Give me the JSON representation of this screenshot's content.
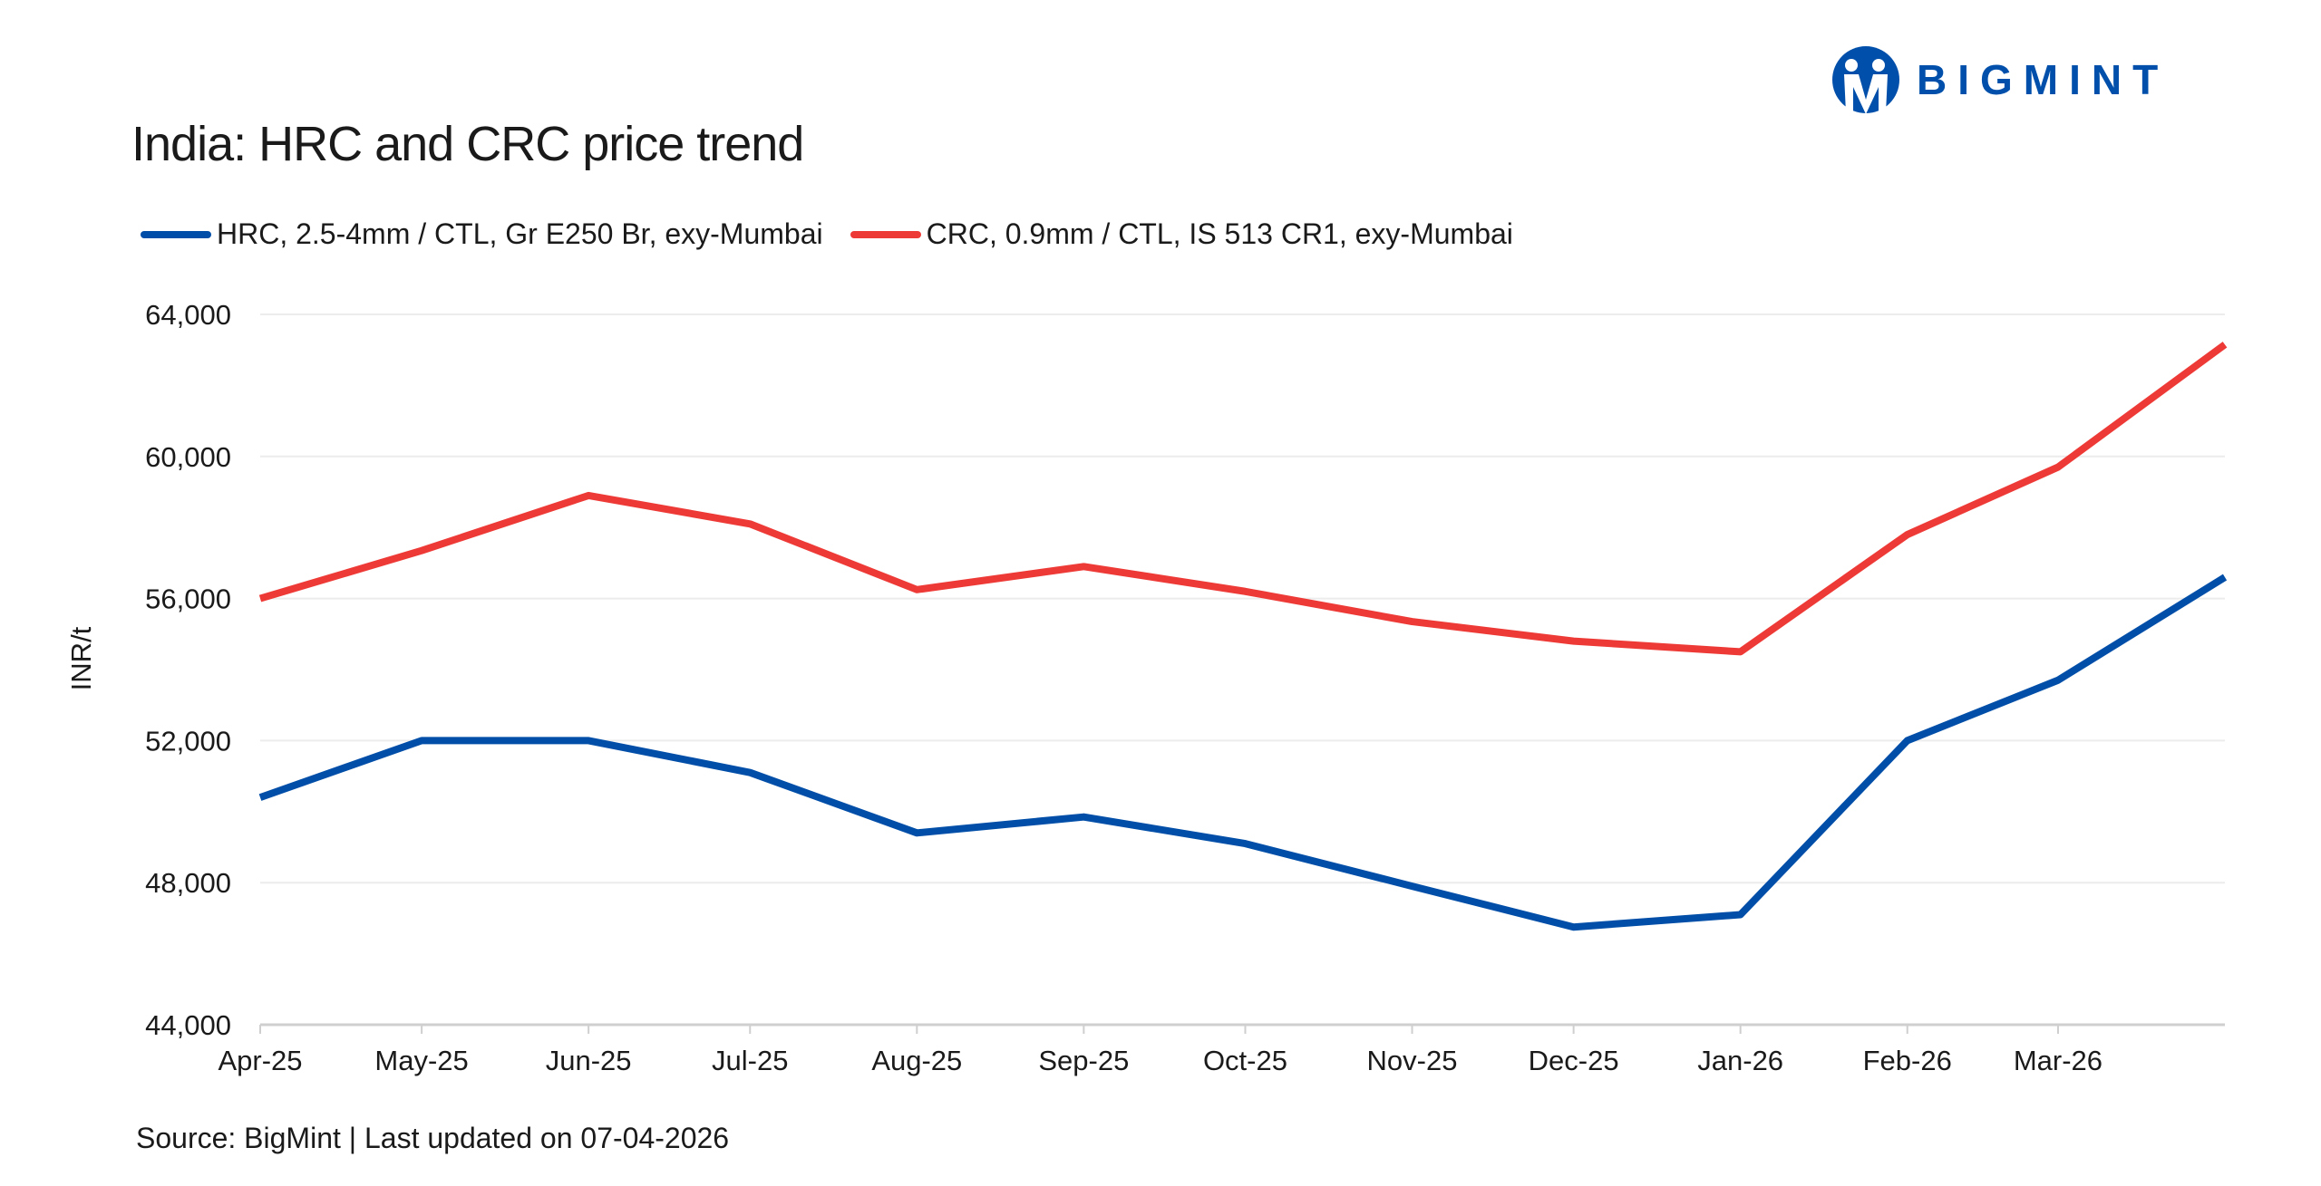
{
  "brand": {
    "name": "BIGMINT",
    "color": "#004FAA"
  },
  "chart_data": {
    "type": "line",
    "title": "India: HRC and CRC price trend",
    "ylabel": "INR/t",
    "xlabel": "",
    "ylim": [
      44000,
      64000
    ],
    "yticks": [
      44000,
      48000,
      52000,
      56000,
      60000,
      64000
    ],
    "ytick_labels": [
      "44,000",
      "48,000",
      "52,000",
      "56,000",
      "60,000",
      "64,000"
    ],
    "xticks": [
      "2025-04-01",
      "2025-05-01",
      "2025-06-01",
      "2025-07-01",
      "2025-08-01",
      "2025-09-01",
      "2025-10-01",
      "2025-11-01",
      "2025-12-01",
      "2026-01-01",
      "2026-02-01",
      "2026-03-01"
    ],
    "xtick_labels": [
      "Apr-25",
      "May-25",
      "Jun-25",
      "Jul-25",
      "Aug-25",
      "Sep-25",
      "Oct-25",
      "Nov-25",
      "Dec-25",
      "Jan-26",
      "Feb-26",
      "Mar-26"
    ],
    "xlim": [
      "2025-04-01",
      "2026-04-01"
    ],
    "grid": "horizontal",
    "legend_position": "top-left",
    "x": [
      "2025-04-01",
      "2025-05-01",
      "2025-06-01",
      "2025-07-01",
      "2025-08-01",
      "2025-09-01",
      "2025-10-01",
      "2025-11-01",
      "2025-12-01",
      "2026-01-01",
      "2026-02-01",
      "2026-03-01",
      "2026-04-01"
    ],
    "series": [
      {
        "name": "HRC, 2.5-4mm / CTL, Gr E250 Br, exy-Mumbai",
        "color": "#004EA8",
        "values": [
          50400,
          52000,
          52000,
          51100,
          49400,
          49850,
          49100,
          47900,
          46750,
          47100,
          52000,
          53700,
          56600
        ]
      },
      {
        "name": "CRC, 0.9mm / CTL, IS 513 CR1, exy-Mumbai",
        "color": "#EE3A36",
        "values": [
          56000,
          57350,
          58900,
          58100,
          56250,
          56900,
          56200,
          55350,
          54800,
          54500,
          57800,
          59700,
          63150
        ]
      }
    ]
  },
  "footer": {
    "source": "Source: BigMint | Last updated on  07-04-2026"
  }
}
